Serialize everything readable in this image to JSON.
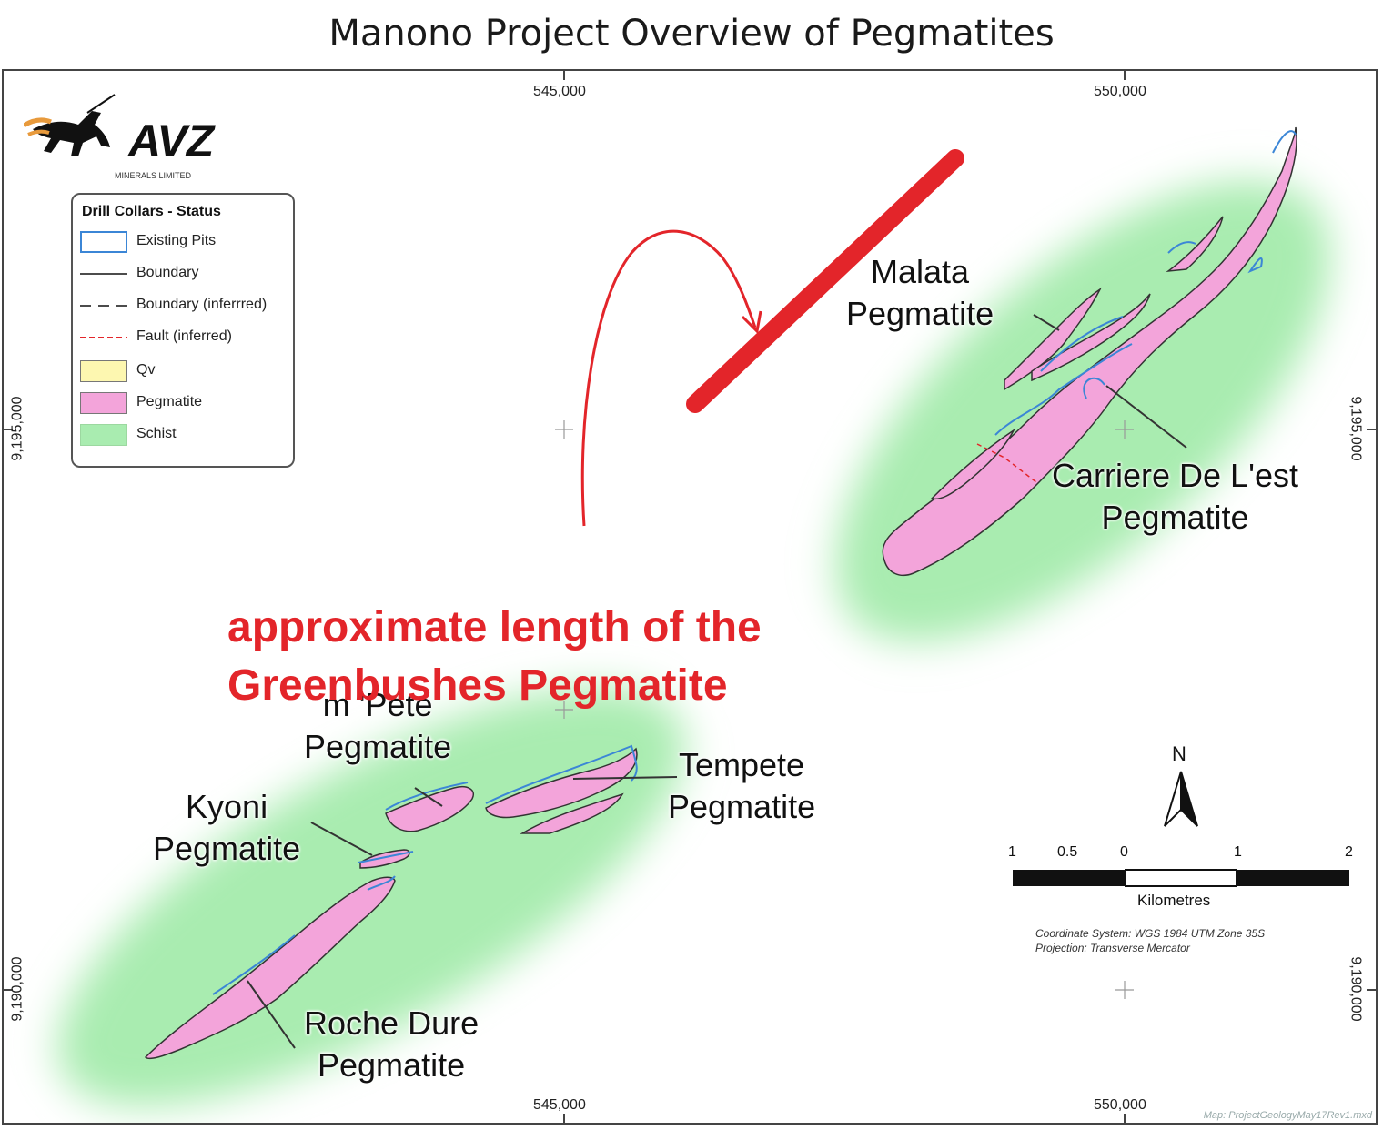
{
  "title": "Manono Project Overview of Pegmatites",
  "logo": {
    "name": "AVZ",
    "subtitle": "MINERALS LIMITED"
  },
  "grid": {
    "x_top": [
      "545,000",
      "550,000"
    ],
    "x_bottom": [
      "545,000",
      "550,000"
    ],
    "y_left": [
      "9,195,000",
      "9,190,000"
    ],
    "y_right": [
      "9,195,000",
      "9,190,000"
    ]
  },
  "legend": {
    "title": "Drill Collars - Status",
    "items": [
      {
        "label": "Existing Pits",
        "type": "box-outline",
        "color": "#3b86d6"
      },
      {
        "label": "Boundary",
        "type": "line",
        "color": "#111111"
      },
      {
        "label": "Boundary (inferrred)",
        "type": "dashed-line",
        "color": "#111111"
      },
      {
        "label": "Fault (inferred)",
        "type": "dashed-line",
        "color": "#e3252a"
      },
      {
        "label": "Qv",
        "type": "box",
        "color": "#fdf7b0"
      },
      {
        "label": "Pegmatite",
        "type": "box",
        "color": "#f3a4da"
      },
      {
        "label": "Schist",
        "type": "box",
        "color": "#a9ecb0"
      }
    ]
  },
  "labels": {
    "malata": [
      "Malata",
      "Pegmatite"
    ],
    "carriere": [
      "Carriere De L'est",
      "Pegmatite"
    ],
    "mpete": [
      "m 'Pete",
      "Pegmatite"
    ],
    "tempete": [
      "Tempete",
      "Pegmatite"
    ],
    "kyoni": [
      "Kyoni",
      "Pegmatite"
    ],
    "roche": [
      "Roche Dure",
      "Pegmatite"
    ]
  },
  "annotation": {
    "line1": "approximate length of the",
    "line2": "Greenbushes Pegmatite",
    "color": "#e3252a"
  },
  "scale": {
    "ticks": [
      "1",
      "0.5",
      "0",
      "1",
      "2"
    ],
    "units": "Kilometres"
  },
  "north": "N",
  "coord_system": "Coordinate System: WGS 1984 UTM Zone 35S",
  "projection": "Projection: Transverse Mercator",
  "map_ref": "Map: ProjectGeologyMay17Rev1.mxd",
  "colors": {
    "schist": "#a9ecb0",
    "pegmatite": "#f3a4da",
    "pit": "#3b86d6",
    "annotation": "#e3252a"
  }
}
